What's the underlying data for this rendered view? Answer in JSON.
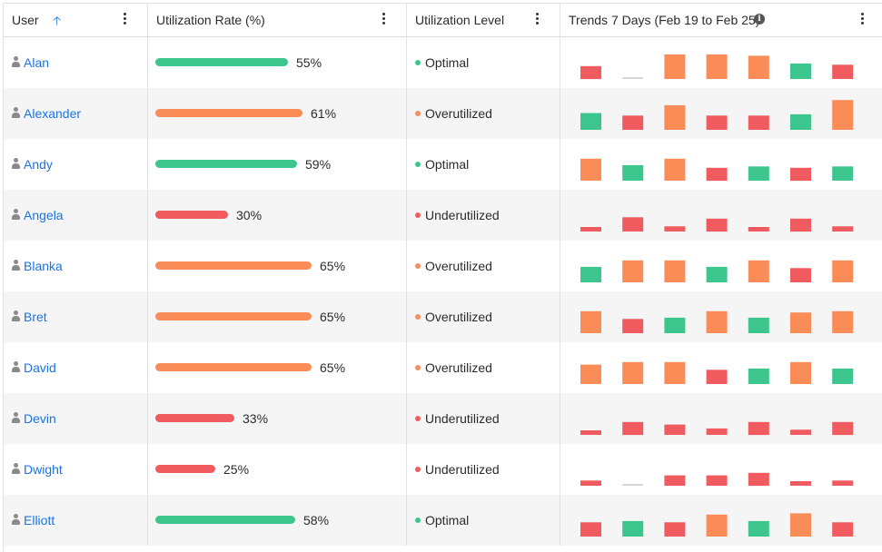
{
  "header": {
    "user_label": "User",
    "rate_label": "Utilization Rate (%)",
    "level_label": "Utilization Level",
    "trend_label": "Trends 7 Days (Feb 19 to Feb 25)"
  },
  "colors": {
    "optimal": "#3cc68e",
    "over": "#fa8c58",
    "under": "#ef5b5e",
    "neutral": "#d8d8d8",
    "link": "#1a73e8",
    "alt_row": "#f5f5f5"
  },
  "rows": [
    {
      "name": "Alan",
      "rate": 55,
      "rate_text": "55%",
      "level": "Optimal",
      "status": "optimal",
      "trend": [
        {
          "s": "under",
          "h": 0.5
        },
        {
          "s": "none",
          "h": 0
        },
        {
          "s": "over",
          "h": 0.95
        },
        {
          "s": "over",
          "h": 0.95
        },
        {
          "s": "over",
          "h": 0.9
        },
        {
          "s": "optimal",
          "h": 0.6
        },
        {
          "s": "under",
          "h": 0.55
        }
      ]
    },
    {
      "name": "Alexander",
      "rate": 61,
      "rate_text": "61%",
      "level": "Overutilized",
      "status": "over",
      "trend": [
        {
          "s": "optimal",
          "h": 0.65
        },
        {
          "s": "under",
          "h": 0.55
        },
        {
          "s": "over",
          "h": 0.95
        },
        {
          "s": "under",
          "h": 0.55
        },
        {
          "s": "under",
          "h": 0.55
        },
        {
          "s": "optimal",
          "h": 0.6
        },
        {
          "s": "over",
          "h": 1.15
        }
      ]
    },
    {
      "name": "Andy",
      "rate": 59,
      "rate_text": "59%",
      "level": "Optimal",
      "status": "optimal",
      "trend": [
        {
          "s": "over",
          "h": 0.85
        },
        {
          "s": "optimal",
          "h": 0.6
        },
        {
          "s": "over",
          "h": 0.85
        },
        {
          "s": "under",
          "h": 0.5
        },
        {
          "s": "optimal",
          "h": 0.55
        },
        {
          "s": "under",
          "h": 0.5
        },
        {
          "s": "optimal",
          "h": 0.55
        }
      ]
    },
    {
      "name": "Angela",
      "rate": 30,
      "rate_text": "30%",
      "level": "Underutilized",
      "status": "under",
      "trend": [
        {
          "s": "under",
          "h": 0.15
        },
        {
          "s": "under",
          "h": 0.55
        },
        {
          "s": "under",
          "h": 0.2
        },
        {
          "s": "under",
          "h": 0.5
        },
        {
          "s": "under",
          "h": 0.15
        },
        {
          "s": "under",
          "h": 0.5
        },
        {
          "s": "under",
          "h": 0.2
        }
      ]
    },
    {
      "name": "Blanka",
      "rate": 65,
      "rate_text": "65%",
      "level": "Overutilized",
      "status": "over",
      "trend": [
        {
          "s": "optimal",
          "h": 0.6
        },
        {
          "s": "over",
          "h": 0.85
        },
        {
          "s": "over",
          "h": 0.85
        },
        {
          "s": "optimal",
          "h": 0.6
        },
        {
          "s": "over",
          "h": 0.85
        },
        {
          "s": "under",
          "h": 0.55
        },
        {
          "s": "over",
          "h": 0.85
        }
      ]
    },
    {
      "name": "Bret",
      "rate": 65,
      "rate_text": "65%",
      "level": "Overutilized",
      "status": "over",
      "trend": [
        {
          "s": "over",
          "h": 0.85
        },
        {
          "s": "under",
          "h": 0.55
        },
        {
          "s": "optimal",
          "h": 0.6
        },
        {
          "s": "over",
          "h": 0.85
        },
        {
          "s": "optimal",
          "h": 0.6
        },
        {
          "s": "over",
          "h": 0.8
        },
        {
          "s": "over",
          "h": 0.85
        }
      ]
    },
    {
      "name": "David",
      "rate": 65,
      "rate_text": "65%",
      "level": "Overutilized",
      "status": "over",
      "trend": [
        {
          "s": "over",
          "h": 0.75
        },
        {
          "s": "over",
          "h": 0.85
        },
        {
          "s": "over",
          "h": 0.85
        },
        {
          "s": "under",
          "h": 0.55
        },
        {
          "s": "optimal",
          "h": 0.6
        },
        {
          "s": "over",
          "h": 0.85
        },
        {
          "s": "optimal",
          "h": 0.6
        }
      ]
    },
    {
      "name": "Devin",
      "rate": 33,
      "rate_text": "33%",
      "level": "Underutilized",
      "status": "under",
      "trend": [
        {
          "s": "under",
          "h": 0.15
        },
        {
          "s": "under",
          "h": 0.5
        },
        {
          "s": "under",
          "h": 0.4
        },
        {
          "s": "under",
          "h": 0.25
        },
        {
          "s": "under",
          "h": 0.5
        },
        {
          "s": "under",
          "h": 0.2
        },
        {
          "s": "under",
          "h": 0.5
        }
      ]
    },
    {
      "name": "Dwight",
      "rate": 25,
      "rate_text": "25%",
      "level": "Underutilized",
      "status": "under",
      "trend": [
        {
          "s": "under",
          "h": 0.2
        },
        {
          "s": "none",
          "h": 0
        },
        {
          "s": "under",
          "h": 0.4
        },
        {
          "s": "under",
          "h": 0.4
        },
        {
          "s": "under",
          "h": 0.5
        },
        {
          "s": "under",
          "h": 0.15
        },
        {
          "s": "under",
          "h": 0.2
        }
      ]
    },
    {
      "name": "Elliott",
      "rate": 58,
      "rate_text": "58%",
      "level": "Optimal",
      "status": "optimal",
      "trend": [
        {
          "s": "under",
          "h": 0.55
        },
        {
          "s": "optimal",
          "h": 0.6
        },
        {
          "s": "under",
          "h": 0.55
        },
        {
          "s": "over",
          "h": 0.85
        },
        {
          "s": "optimal",
          "h": 0.6
        },
        {
          "s": "over",
          "h": 0.9
        },
        {
          "s": "under",
          "h": 0.55
        }
      ]
    }
  ]
}
